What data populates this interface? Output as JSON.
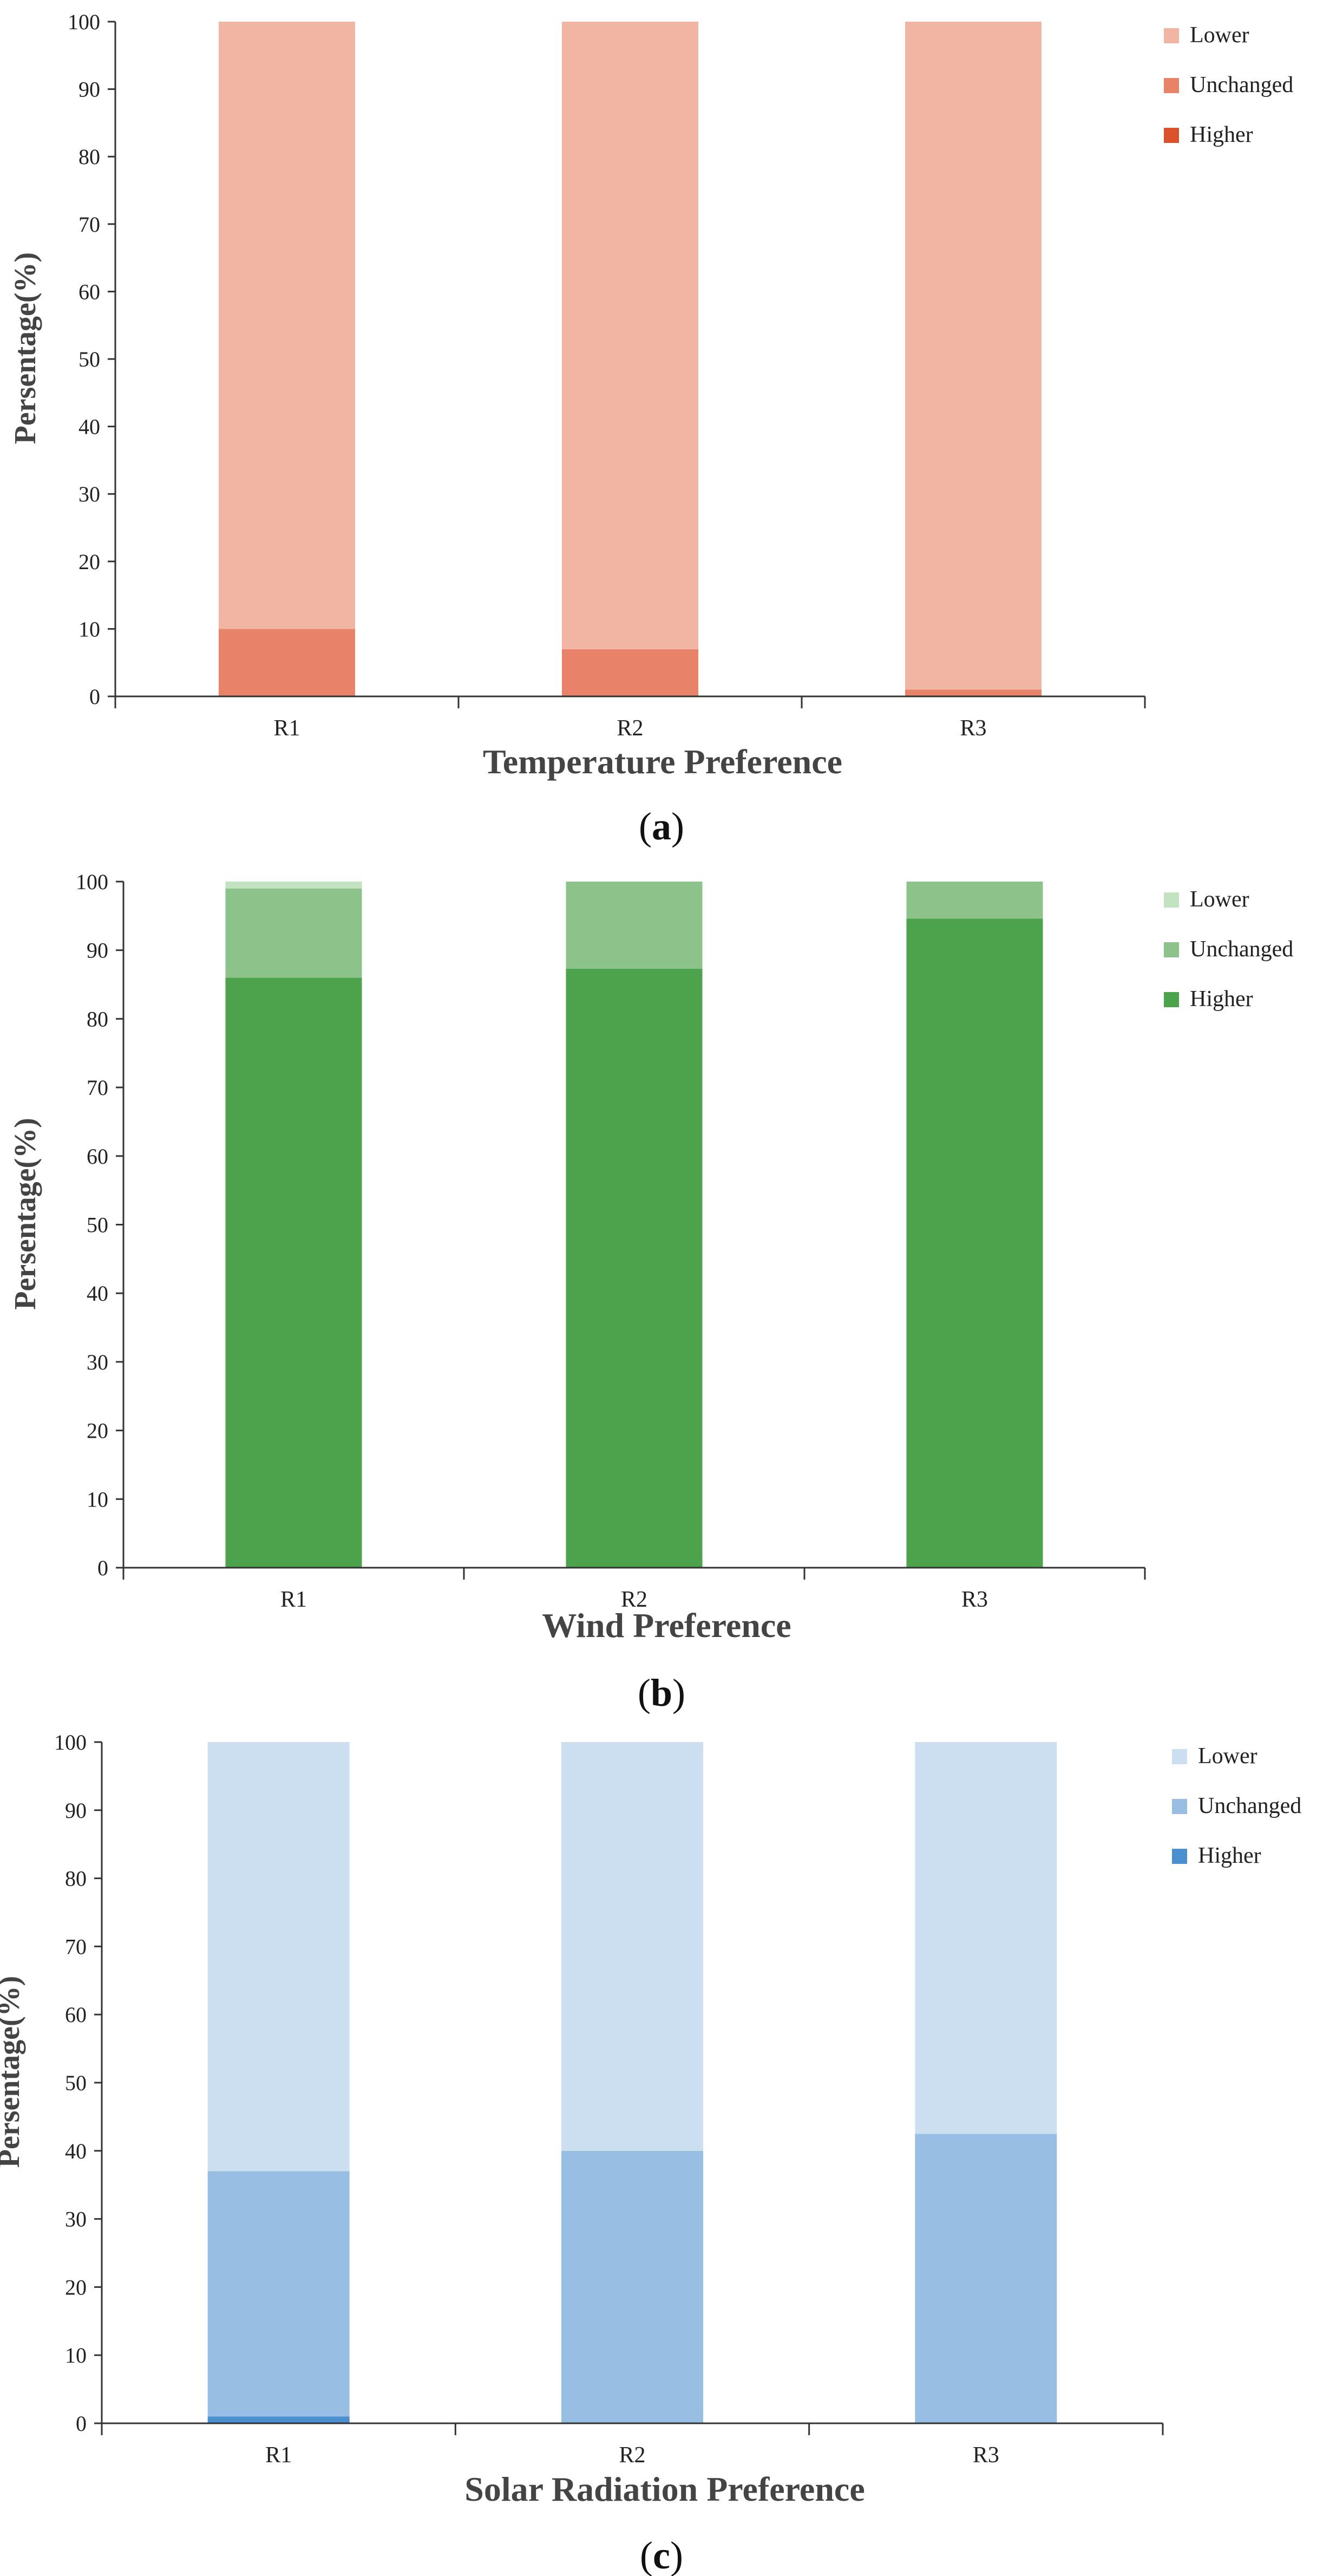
{
  "chart_data": [
    {
      "type": "bar",
      "stacked": true,
      "panel_label": "a",
      "categories": [
        "R1",
        "R2",
        "R3"
      ],
      "series": [
        {
          "name": "Higher",
          "values": [
            0,
            0,
            0
          ],
          "color": "#d9522c"
        },
        {
          "name": "Unchanged",
          "values": [
            10,
            7,
            1
          ],
          "color": "#e8836a"
        },
        {
          "name": "Lower",
          "values": [
            90,
            93,
            99
          ],
          "color": "#f1b5a4"
        }
      ],
      "legend_order": [
        "Lower",
        "Unchanged",
        "Higher"
      ],
      "legend_position": "right",
      "xlabel": "Temperature Preference",
      "ylabel": "Persentage(%)",
      "ylim": [
        0,
        100
      ],
      "yticks": [
        0,
        10,
        20,
        30,
        40,
        50,
        60,
        70,
        80,
        90,
        100
      ],
      "grid": false
    },
    {
      "type": "bar",
      "stacked": true,
      "panel_label": "b",
      "categories": [
        "R1",
        "R2",
        "R3"
      ],
      "series": [
        {
          "name": "Higher",
          "values": [
            86,
            87.3,
            94.6
          ],
          "color": "#4da34c"
        },
        {
          "name": "Unchanged",
          "values": [
            13,
            12.7,
            5.4
          ],
          "color": "#8cc38a"
        },
        {
          "name": "Lower",
          "values": [
            1,
            0,
            0
          ],
          "color": "#c3e2c0"
        }
      ],
      "legend_order": [
        "Lower",
        "Unchanged",
        "Higher"
      ],
      "legend_position": "right",
      "xlabel": "Wind Preference",
      "ylabel": "Persentage(%)",
      "ylim": [
        0,
        100
      ],
      "yticks": [
        0,
        10,
        20,
        30,
        40,
        50,
        60,
        70,
        80,
        90,
        100
      ],
      "grid": false
    },
    {
      "type": "bar",
      "stacked": true,
      "panel_label": "c",
      "categories": [
        "R1",
        "R2",
        "R3"
      ],
      "series": [
        {
          "name": "Higher",
          "values": [
            1,
            0,
            0
          ],
          "color": "#4a8fcf"
        },
        {
          "name": "Unchanged",
          "values": [
            36,
            40,
            42.5
          ],
          "color": "#98bfe3"
        },
        {
          "name": "Lower",
          "values": [
            63,
            60,
            57.5
          ],
          "color": "#cbdff0"
        }
      ],
      "legend_order": [
        "Lower",
        "Unchanged",
        "Higher"
      ],
      "legend_position": "right",
      "xlabel": "Solar Radiation Preference",
      "ylabel": "Persentage(%)",
      "ylim": [
        0,
        100
      ],
      "yticks": [
        0,
        10,
        20,
        30,
        40,
        50,
        60,
        70,
        80,
        90,
        100
      ],
      "grid": false
    }
  ]
}
